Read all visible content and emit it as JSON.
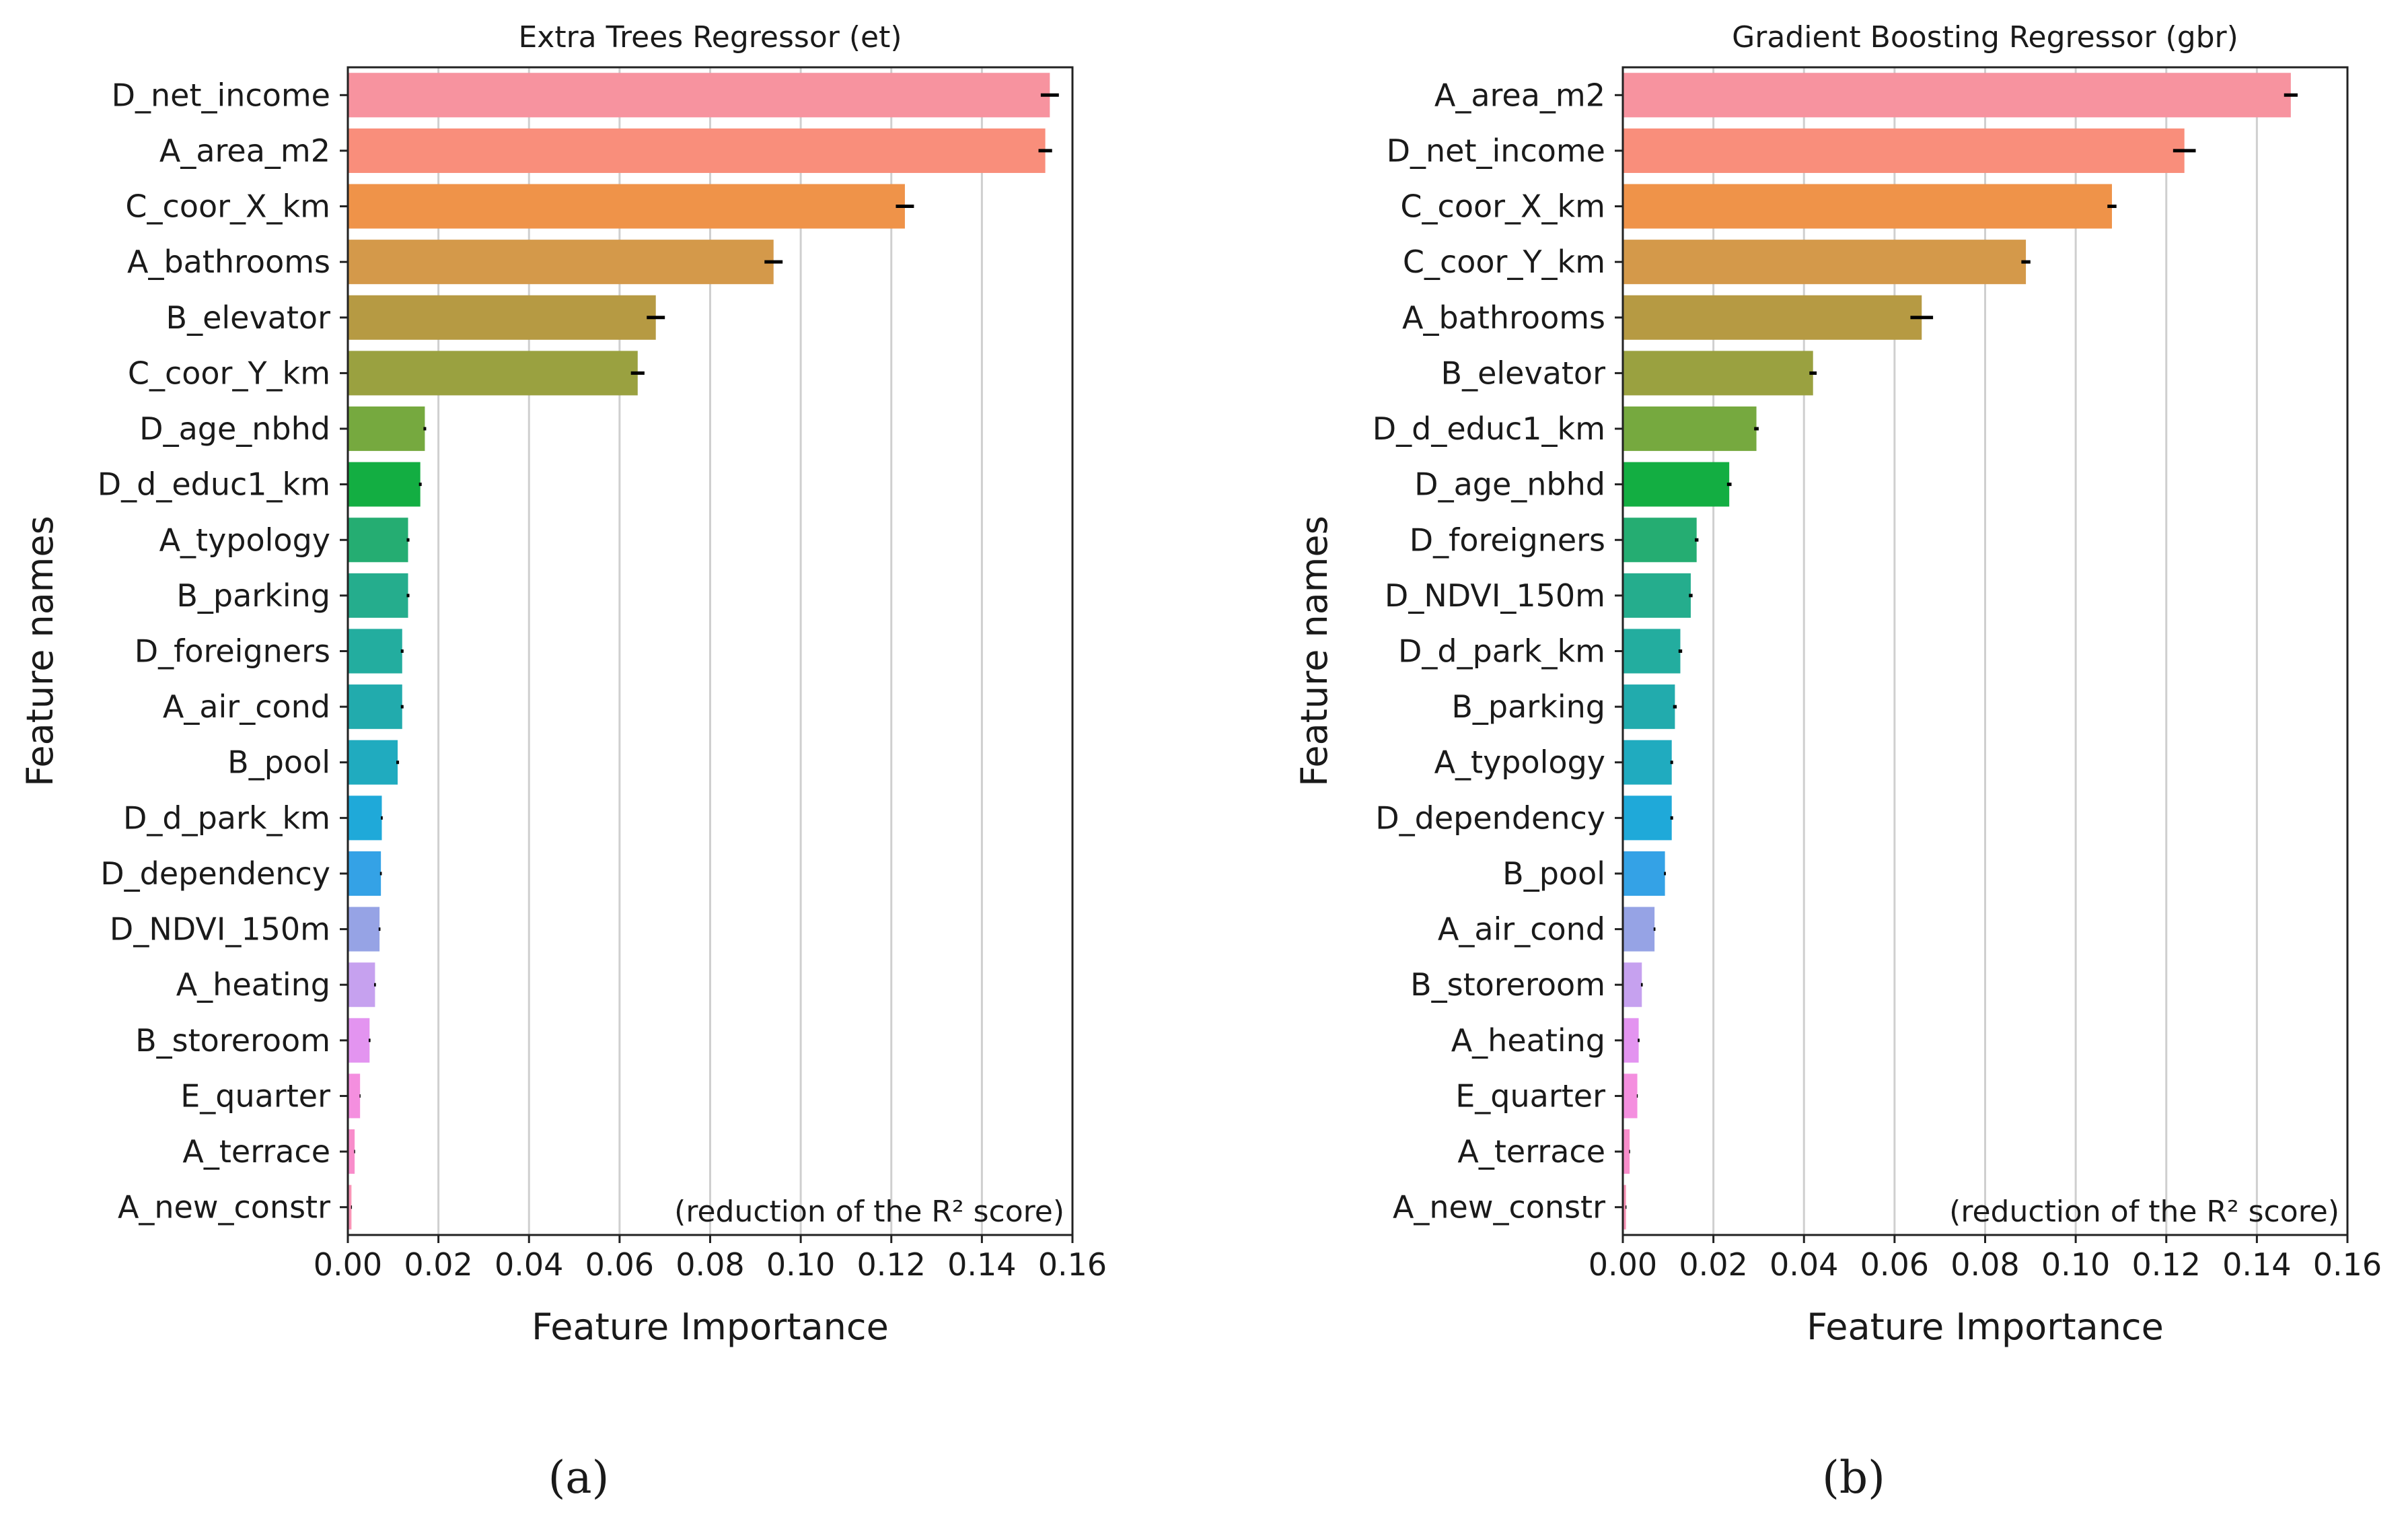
{
  "chart_data": [
    {
      "type": "bar",
      "orientation": "horizontal",
      "title": "Extra Trees Regressor (et)",
      "xlabel": "Feature Importance",
      "ylabel": "Feature names",
      "annotation": "(reduction of the R² score)",
      "panel_label": "(a)",
      "xlim": [
        0,
        0.16
      ],
      "xticks": [
        "0.00",
        "0.02",
        "0.04",
        "0.06",
        "0.08",
        "0.10",
        "0.12",
        "0.14",
        "0.16"
      ],
      "grid": "vertical",
      "error_bars": true,
      "categories": [
        "D_net_income",
        "A_area_m2",
        "C_coor_X_km",
        "A_bathrooms",
        "B_elevator",
        "C_coor_Y_km",
        "D_age_nbhd",
        "D_d_educ1_km",
        "A_typology",
        "B_parking",
        "D_foreigners",
        "A_air_cond",
        "B_pool",
        "D_d_park_km",
        "D_dependency",
        "D_NDVI_150m",
        "A_heating",
        "B_storeroom",
        "E_quarter",
        "A_terrace",
        "A_new_constr"
      ],
      "values": [
        0.155,
        0.154,
        0.123,
        0.094,
        0.068,
        0.064,
        0.017,
        0.016,
        0.0133,
        0.0133,
        0.012,
        0.012,
        0.011,
        0.0075,
        0.0073,
        0.007,
        0.006,
        0.0048,
        0.0027,
        0.0015,
        0.0008
      ],
      "errors": [
        0.002,
        0.0015,
        0.002,
        0.002,
        0.002,
        0.0015,
        0.0003,
        0.0003,
        0.0003,
        0.0003,
        0.0003,
        0.0003,
        0.0003,
        0.0002,
        0.0002,
        0.0002,
        0.0002,
        0.0002,
        0.0001,
        0.0001,
        0.0001
      ],
      "colors": [
        "#f7939f",
        "#f98e7b",
        "#ef9349",
        "#d4994a",
        "#b69a43",
        "#9aa140",
        "#76a93f",
        "#13ae42",
        "#25ad72",
        "#25ad8d",
        "#23ad9f",
        "#22abad",
        "#20abbf",
        "#1fa9d9",
        "#34a2e6",
        "#96a3e5",
        "#c6a1ef",
        "#e394f0",
        "#f48fdf",
        "#f88dcb",
        "#f894b6"
      ]
    },
    {
      "type": "bar",
      "orientation": "horizontal",
      "title": "Gradient Boosting Regressor (gbr)",
      "xlabel": "Feature Importance",
      "ylabel": "Feature names",
      "annotation": "(reduction of the R² score)",
      "panel_label": "(b)",
      "xlim": [
        0,
        0.16
      ],
      "xticks": [
        "0.00",
        "0.02",
        "0.04",
        "0.06",
        "0.08",
        "0.10",
        "0.12",
        "0.14",
        "0.16"
      ],
      "grid": "vertical",
      "error_bars": true,
      "categories": [
        "A_area_m2",
        "D_net_income",
        "C_coor_X_km",
        "C_coor_Y_km",
        "A_bathrooms",
        "B_elevator",
        "D_d_educ1_km",
        "D_age_nbhd",
        "D_foreigners",
        "D_NDVI_150m",
        "D_d_park_km",
        "B_parking",
        "A_typology",
        "D_dependency",
        "B_pool",
        "A_air_cond",
        "B_storeroom",
        "A_heating",
        "E_quarter",
        "A_terrace",
        "A_new_constr"
      ],
      "values": [
        0.1475,
        0.124,
        0.108,
        0.089,
        0.066,
        0.042,
        0.0295,
        0.0235,
        0.0163,
        0.015,
        0.0127,
        0.0115,
        0.0108,
        0.0108,
        0.0093,
        0.007,
        0.0042,
        0.0035,
        0.0032,
        0.0015,
        0.0007
      ],
      "errors": [
        0.0015,
        0.0025,
        0.001,
        0.001,
        0.0025,
        0.0008,
        0.0005,
        0.0005,
        0.0004,
        0.0004,
        0.0004,
        0.0004,
        0.0003,
        0.0003,
        0.0002,
        0.0002,
        0.0002,
        0.0002,
        0.0001,
        0.0001,
        0.0001
      ],
      "colors": [
        "#f7939f",
        "#f98e7b",
        "#ef9349",
        "#d4994a",
        "#b69a43",
        "#9aa140",
        "#76a93f",
        "#13ae42",
        "#25ad72",
        "#25ad8d",
        "#23ad9f",
        "#22abad",
        "#20abbf",
        "#1fa9d9",
        "#34a2e6",
        "#96a3e5",
        "#c6a1ef",
        "#e394f0",
        "#f48fdf",
        "#f88dcb",
        "#f894b6"
      ]
    }
  ]
}
